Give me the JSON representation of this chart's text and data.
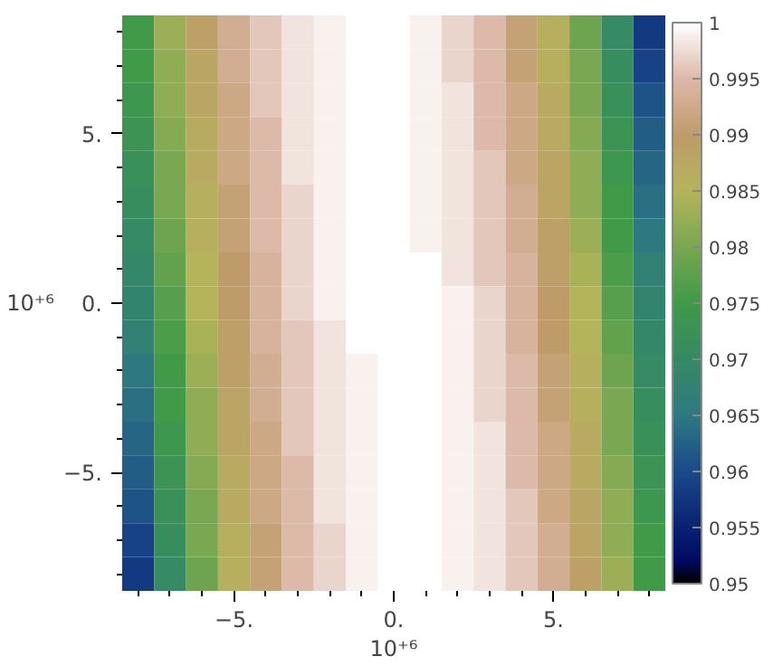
{
  "chart_data": {
    "type": "heatmap",
    "xlabel": "10⁺⁶",
    "ylabel": "10⁺⁶",
    "categories": [
      null,
      null,
      null,
      "−5.",
      null,
      null,
      null,
      null,
      "0.",
      null,
      null,
      null,
      null,
      "5.",
      null,
      null,
      null
    ],
    "y_categories": [
      null,
      null,
      null,
      "5.",
      null,
      null,
      null,
      null,
      "0.",
      null,
      null,
      null,
      null,
      "−5.",
      null,
      null,
      null
    ],
    "clim": [
      0.95,
      1
    ],
    "cticks": [
      0.95,
      0.955,
      0.96,
      0.965,
      0.97,
      0.975,
      0.98,
      0.985,
      0.99,
      0.995,
      1
    ],
    "cells": [
      [
        0.975,
        0.983,
        0.989,
        0.993,
        0.996,
        0.998,
        0.999,
        1.0,
        1.0,
        0.999,
        0.997,
        0.995,
        0.991,
        0.986,
        0.979,
        0.97,
        0.958
      ],
      [
        0.975,
        0.982,
        0.988,
        0.993,
        0.996,
        0.998,
        0.999,
        1.0,
        1.0,
        0.999,
        0.997,
        0.995,
        0.991,
        0.986,
        0.98,
        0.971,
        0.959
      ],
      [
        0.974,
        0.982,
        0.988,
        0.992,
        0.996,
        0.998,
        0.999,
        1.0,
        1.0,
        0.999,
        0.998,
        0.995,
        0.992,
        0.987,
        0.98,
        0.972,
        0.961
      ],
      [
        0.973,
        0.981,
        0.987,
        0.992,
        0.995,
        0.998,
        0.999,
        1.0,
        1.0,
        0.999,
        0.998,
        0.995,
        0.992,
        0.987,
        0.981,
        0.973,
        0.962
      ],
      [
        0.972,
        0.98,
        0.987,
        0.992,
        0.995,
        0.998,
        0.999,
        1.0,
        1.0,
        0.999,
        0.998,
        0.996,
        0.992,
        0.988,
        0.982,
        0.974,
        0.963
      ],
      [
        0.971,
        0.98,
        0.986,
        0.991,
        0.995,
        0.997,
        0.999,
        1.0,
        1.0,
        0.999,
        0.998,
        0.996,
        0.993,
        0.988,
        0.982,
        0.975,
        0.964
      ],
      [
        0.97,
        0.979,
        0.986,
        0.991,
        0.995,
        0.997,
        0.999,
        1.0,
        1.0,
        0.999,
        0.998,
        0.996,
        0.993,
        0.989,
        0.983,
        0.975,
        0.965
      ],
      [
        0.969,
        0.978,
        0.985,
        0.99,
        0.994,
        0.997,
        0.999,
        1.0,
        1.0,
        1.0,
        0.998,
        0.996,
        0.994,
        0.989,
        0.984,
        0.976,
        0.967
      ],
      [
        0.968,
        0.977,
        0.985,
        0.99,
        0.994,
        0.997,
        0.999,
        1.0,
        1.0,
        1.0,
        0.999,
        0.997,
        0.994,
        0.99,
        0.985,
        0.977,
        0.968
      ],
      [
        0.967,
        0.976,
        0.984,
        0.989,
        0.994,
        0.996,
        0.998,
        1.0,
        1.0,
        1.0,
        0.999,
        0.997,
        0.994,
        0.99,
        0.985,
        0.978,
        0.969
      ],
      [
        0.965,
        0.975,
        0.983,
        0.989,
        0.993,
        0.996,
        0.998,
        0.999,
        1.0,
        1.0,
        0.999,
        0.997,
        0.995,
        0.991,
        0.986,
        0.979,
        0.97
      ],
      [
        0.964,
        0.975,
        0.982,
        0.988,
        0.993,
        0.996,
        0.998,
        0.999,
        1.0,
        1.0,
        0.999,
        0.997,
        0.995,
        0.991,
        0.986,
        0.98,
        0.971
      ],
      [
        0.963,
        0.974,
        0.982,
        0.988,
        0.992,
        0.996,
        0.998,
        0.999,
        1.0,
        1.0,
        0.999,
        0.998,
        0.995,
        0.992,
        0.987,
        0.98,
        0.972
      ],
      [
        0.962,
        0.973,
        0.981,
        0.987,
        0.992,
        0.995,
        0.998,
        0.999,
        1.0,
        1.0,
        0.999,
        0.998,
        0.995,
        0.992,
        0.987,
        0.981,
        0.973
      ],
      [
        0.961,
        0.972,
        0.98,
        0.987,
        0.992,
        0.995,
        0.998,
        0.999,
        1.0,
        1.0,
        0.999,
        0.998,
        0.996,
        0.992,
        0.988,
        0.982,
        0.974
      ],
      [
        0.959,
        0.971,
        0.98,
        0.986,
        0.991,
        0.995,
        0.997,
        0.999,
        1.0,
        1.0,
        0.999,
        0.998,
        0.996,
        0.993,
        0.988,
        0.982,
        0.975
      ],
      [
        0.958,
        0.97,
        0.979,
        0.986,
        0.991,
        0.995,
        0.997,
        0.999,
        1.0,
        1.0,
        0.999,
        0.998,
        0.996,
        0.993,
        0.989,
        0.983,
        0.975
      ]
    ]
  }
}
